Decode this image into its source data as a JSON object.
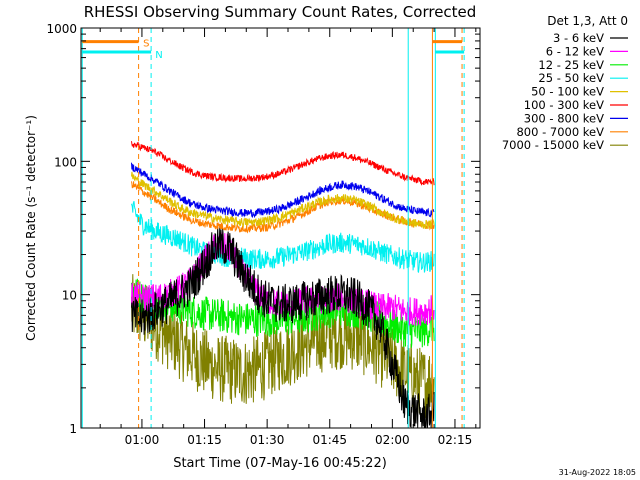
{
  "chart_data": {
    "type": "line",
    "title": "RHESSI Observing Summary Count Rates, Corrected",
    "xlabel": "Start Time (07-May-16 00:45:22)",
    "ylabel": "Corrected Count Rate (s⁻¹ detector⁻¹)",
    "yscale": "log",
    "ylim": [
      1,
      1000
    ],
    "xlim_min": [
      45.4,
      141
    ],
    "xticks": [
      {
        "t": 60,
        "label": "01:00"
      },
      {
        "t": 75,
        "label": "01:15"
      },
      {
        "t": 90,
        "label": "01:30"
      },
      {
        "t": 105,
        "label": "01:45"
      },
      {
        "t": 120,
        "label": "02:00"
      },
      {
        "t": 135,
        "label": "02:15"
      }
    ],
    "yticks": [
      {
        "v": 1,
        "label": "1"
      },
      {
        "v": 10,
        "label": "10"
      },
      {
        "v": 100,
        "label": "100"
      },
      {
        "v": 1000,
        "label": "1000"
      }
    ],
    "data_start_min": 57.5,
    "data_end_min": 130.0,
    "legend_title": "Det 1,3, Att 0",
    "series": [
      {
        "name": "3 - 6 keV",
        "color": "#000000",
        "x": [
          57.5,
          60,
          63,
          66,
          69,
          72,
          75,
          78,
          81,
          84,
          87,
          90,
          93,
          96,
          99,
          102,
          105,
          108,
          111,
          114,
          117,
          120,
          123,
          126,
          128,
          130
        ],
        "y": [
          7,
          6.5,
          7.5,
          8.5,
          10,
          12,
          17,
          24,
          22,
          15,
          11,
          9,
          8.5,
          8.5,
          9,
          9.5,
          10,
          10,
          9.5,
          8,
          6,
          3,
          1.5,
          1.3,
          1.2,
          1.4
        ]
      },
      {
        "name": "6 - 12 keV",
        "color": "#ff00ff",
        "x": [
          57.5,
          60,
          63,
          66,
          69,
          72,
          75,
          78,
          81,
          84,
          87,
          90,
          93,
          96,
          99,
          102,
          105,
          108,
          111,
          114,
          117,
          120,
          123,
          126,
          128,
          130
        ],
        "y": [
          10,
          9.5,
          9.5,
          10,
          11,
          13,
          18,
          24,
          22,
          15,
          11,
          9,
          8.5,
          8.5,
          9,
          9,
          9.5,
          9.5,
          9,
          8.5,
          8,
          8,
          7.5,
          7.5,
          7.5,
          8
        ]
      },
      {
        "name": "12 - 25 keV",
        "color": "#00ee00",
        "x": [
          57.5,
          60,
          63,
          66,
          69,
          72,
          75,
          78,
          81,
          84,
          87,
          90,
          93,
          96,
          99,
          102,
          105,
          108,
          111,
          114,
          117,
          120,
          123,
          126,
          128,
          130
        ],
        "y": [
          11,
          9.5,
          9,
          8.5,
          8,
          7.5,
          7.2,
          7,
          6.8,
          6.6,
          6.5,
          6.5,
          6.5,
          6.6,
          6.8,
          7.2,
          7.6,
          7.8,
          7.6,
          7.2,
          6.5,
          5.8,
          5.4,
          5.3,
          5.4,
          5.8
        ]
      },
      {
        "name": "25 - 50 keV",
        "color": "#00f0f0",
        "x": [
          57.5,
          60,
          63,
          66,
          69,
          72,
          75,
          78,
          81,
          84,
          87,
          90,
          93,
          96,
          99,
          102,
          105,
          108,
          111,
          114,
          117,
          120,
          123,
          126,
          128,
          130
        ],
        "y": [
          45,
          34,
          30,
          28,
          26,
          23,
          21,
          20,
          19,
          19,
          18.5,
          18.5,
          19,
          20,
          21,
          22.5,
          24,
          24.5,
          24,
          23,
          21,
          19.5,
          18.5,
          17.5,
          17.5,
          18
        ]
      },
      {
        "name": "50 - 100 keV",
        "color": "#e0c000",
        "x": [
          57.5,
          60,
          63,
          66,
          69,
          72,
          75,
          78,
          81,
          84,
          87,
          90,
          93,
          96,
          99,
          102,
          105,
          108,
          111,
          114,
          117,
          120,
          123,
          126,
          128,
          130
        ],
        "y": [
          78,
          68,
          60,
          52,
          45,
          41,
          39,
          37,
          36,
          35,
          35,
          36,
          38,
          41,
          45,
          49,
          52,
          53,
          51,
          47,
          42,
          38,
          35.5,
          34,
          33.5,
          34
        ]
      },
      {
        "name": "100 - 300 keV",
        "color": "#ff0000",
        "x": [
          57.5,
          60,
          63,
          66,
          69,
          72,
          75,
          78,
          81,
          84,
          87,
          90,
          93,
          96,
          99,
          102,
          105,
          108,
          111,
          114,
          117,
          120,
          123,
          126,
          128,
          130
        ],
        "y": [
          135,
          128,
          118,
          104,
          92,
          83,
          78,
          76,
          75,
          74,
          75,
          77,
          81,
          88,
          96,
          104,
          110,
          112,
          107,
          99,
          90,
          82,
          76,
          72,
          70,
          70
        ]
      },
      {
        "name": "300 - 800 keV",
        "color": "#0000ee",
        "x": [
          57.5,
          60,
          63,
          66,
          69,
          72,
          75,
          78,
          81,
          84,
          87,
          90,
          93,
          96,
          99,
          102,
          105,
          108,
          111,
          114,
          117,
          120,
          123,
          126,
          128,
          130
        ],
        "y": [
          92,
          82,
          72,
          62,
          54,
          48,
          45,
          43,
          42,
          41,
          41,
          42,
          44,
          48,
          53,
          59,
          64,
          67,
          65,
          60,
          54,
          48,
          44,
          42,
          41,
          41
        ]
      },
      {
        "name": "800 - 7000 keV",
        "color": "#ff8000",
        "x": [
          57.5,
          60,
          63,
          66,
          69,
          72,
          75,
          78,
          81,
          84,
          87,
          90,
          93,
          96,
          99,
          102,
          105,
          108,
          111,
          114,
          117,
          120,
          123,
          126,
          128,
          130
        ],
        "y": [
          68,
          60,
          52,
          45,
          40,
          36,
          34,
          33,
          32,
          31.5,
          31.5,
          32,
          34,
          37,
          41,
          46,
          50,
          51,
          49,
          45,
          41,
          38,
          35.5,
          34,
          33.5,
          33
        ]
      },
      {
        "name": "7000 - 15000 keV",
        "color": "#808000",
        "x": [
          57.5,
          60,
          63,
          66,
          69,
          72,
          75,
          78,
          81,
          84,
          87,
          90,
          93,
          96,
          99,
          102,
          105,
          108,
          111,
          114,
          117,
          120,
          123,
          126,
          128,
          130
        ],
        "y": [
          8,
          7,
          6,
          5,
          4.2,
          3.6,
          3.1,
          2.8,
          2.7,
          2.6,
          2.7,
          3,
          3.4,
          3.8,
          4.2,
          4.6,
          4.9,
          5,
          4.8,
          4.3,
          3.7,
          3.1,
          2.6,
          2.3,
          2.2,
          2.4
        ]
      }
    ],
    "annotations": [
      {
        "label": "S",
        "t": 60.3,
        "color": "#ff8000"
      },
      {
        "label": "N",
        "t": 63.2,
        "color": "#00f0f0"
      }
    ],
    "vlines": [
      {
        "t": 45.7,
        "color": "#00f0f0",
        "style": "solid"
      },
      {
        "t": 59.2,
        "color": "#ff8000",
        "style": "dashed"
      },
      {
        "t": 62.2,
        "color": "#00f0f0",
        "style": "dashed"
      },
      {
        "t": 123.8,
        "color": "#00f0f0",
        "style": "solid"
      },
      {
        "t": 129.6,
        "color": "#ff8000",
        "style": "solid"
      },
      {
        "t": 130.3,
        "color": "#00f0f0",
        "style": "solid"
      },
      {
        "t": 136.7,
        "color": "#ff8000",
        "style": "dashed"
      },
      {
        "t": 137.2,
        "color": "#00f0f0",
        "style": "dashed"
      }
    ],
    "flag_bars": [
      {
        "name": "saa-flag",
        "color": "#ff8000",
        "value": 790,
        "segments": [
          [
            45.7,
            59.2
          ],
          [
            129.6,
            136.7
          ]
        ]
      },
      {
        "name": "night-flag",
        "color": "#00f0f0",
        "value": 660,
        "segments": [
          [
            45.7,
            62.2
          ],
          [
            130.3,
            137.2
          ]
        ]
      }
    ],
    "footer": "31-Aug-2022 18:05"
  }
}
